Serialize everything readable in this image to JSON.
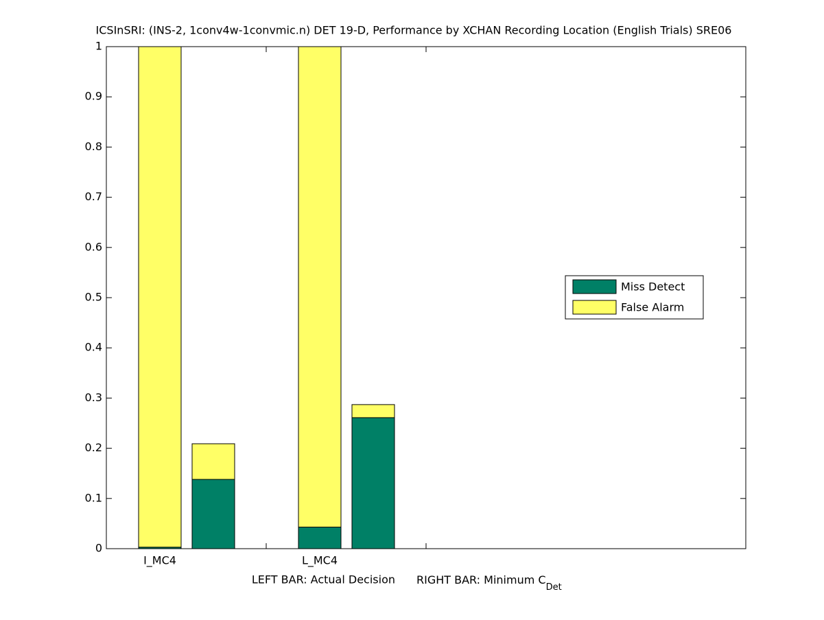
{
  "chart_data": {
    "type": "stacked_bar_pair",
    "title": "ICSInSRI: (INS-2, 1conv4w-1convmic.n) DET 19-D,  Performance by XCHAN Recording Location (English Trials) SRE06",
    "categories": [
      "I_MC4",
      "L_MC4"
    ],
    "series": [
      {
        "name": "Miss Detect",
        "color": "#008066",
        "actual_values": [
          0.003,
          0.043
        ],
        "min_values": [
          0.138,
          0.261
        ]
      },
      {
        "name": "False Alarm",
        "color": "#ffff66",
        "actual_values": [
          0.997,
          0.957
        ],
        "min_values": [
          0.071,
          0.026
        ]
      }
    ],
    "xlabel": {
      "left": "LEFT BAR: Actual Decision",
      "right": "RIGHT BAR: Minimum C",
      "subscript": "Det"
    },
    "ylim": [
      0,
      1
    ],
    "yticks": [
      0,
      0.1,
      0.2,
      0.3,
      0.4,
      0.5,
      0.6,
      0.7,
      0.8,
      0.9,
      1
    ],
    "legend": "east"
  }
}
